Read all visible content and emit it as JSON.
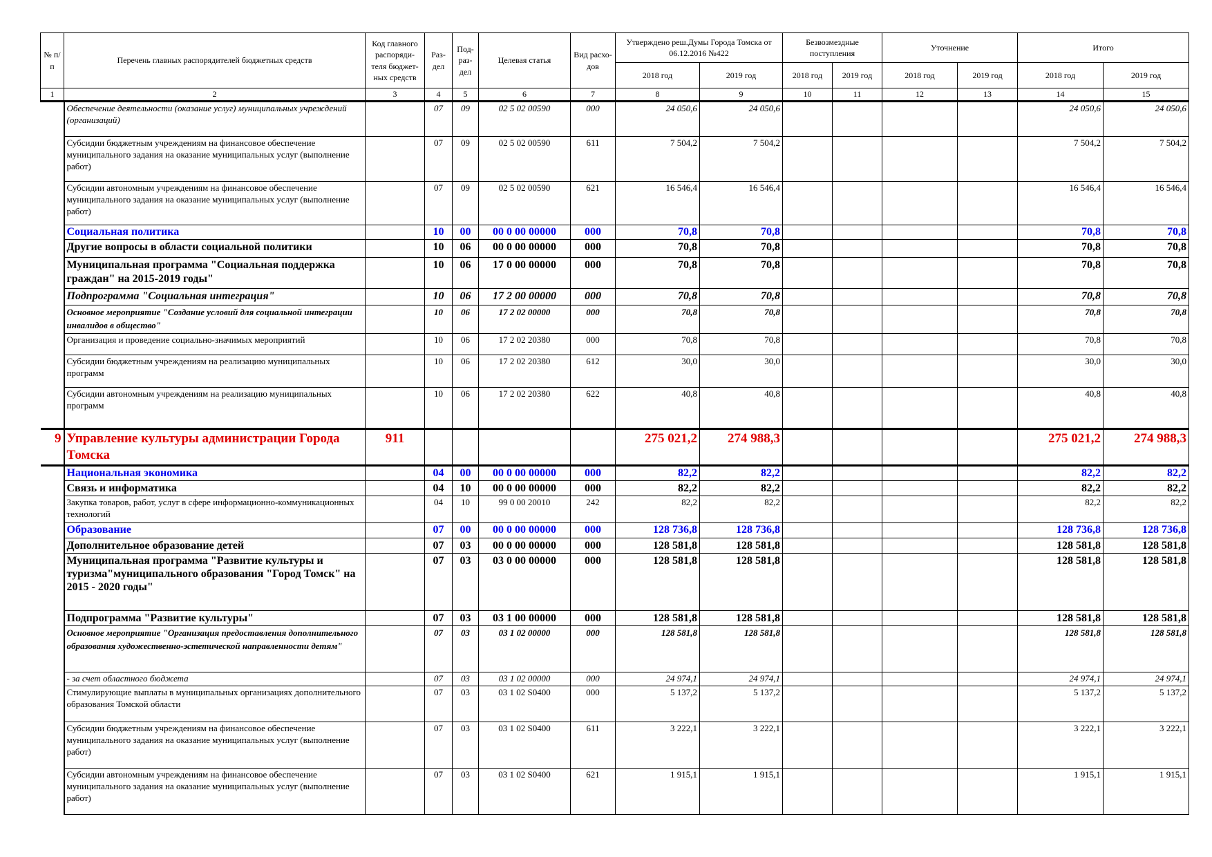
{
  "header": {
    "num": "№ п/п",
    "name": "Перечень главных распорядителей бюджетных средств",
    "code": "Код главного распоряди-теля бюджет-ных средств",
    "sec": "Раз-дел",
    "sub": "Под-раз-дел",
    "target": "Целевая статья",
    "kind": "Вид расхо-дов",
    "approved": "Утверждено реш.Думы Города Томска от 06.12.2016 №422",
    "grants": "Безвозмездные поступления",
    "adjust": "Уточнение",
    "total": "Итого",
    "years": [
      "2018 год",
      "2019 год",
      "2018 год",
      "2019 год",
      "2018 год",
      "2019 год",
      "2018 год",
      "2019 год"
    ],
    "col_numbers": [
      "1",
      "2",
      "3",
      "4",
      "5",
      "6",
      "7",
      "8",
      "9",
      "10",
      "11",
      "12",
      "13",
      "14",
      "15"
    ]
  },
  "table": {
    "rows": [
      {
        "style": "italic",
        "name": "Обеспечение деятельности (оказание услуг) муниципальных учреждений (организаций)",
        "sec": "07",
        "sub": "09",
        "target": "02 5 02 00590",
        "kind": "000",
        "a18": "24 050,6",
        "a19": "24 050,6",
        "t18": "24 050,6",
        "t19": "24 050,6"
      },
      {
        "style": "normal",
        "name": "Субсидии бюджетным учреждениям на финансовое обеспечение муниципального задания на оказание муниципальных услуг (выполнение работ)",
        "sec": "07",
        "sub": "09",
        "target": "02 5 02 00590",
        "kind": "611",
        "a18": "7 504,2",
        "a19": "7 504,2",
        "t18": "7 504,2",
        "t19": "7 504,2"
      },
      {
        "style": "normal",
        "name": "Субсидии автономным учреждениям на финансовое обеспечение муниципального задания на оказание муниципальных услуг (выполнение работ)",
        "sec": "07",
        "sub": "09",
        "target": "02 5 02 00590",
        "kind": "621",
        "a18": "16 546,4",
        "a19": "16 546,4",
        "t18": "16 546,4",
        "t19": "16 546,4"
      },
      {
        "style": "blue",
        "name": "Социальная политика",
        "sec": "10",
        "sub": "00",
        "target": "00 0 00 00000",
        "kind": "000",
        "a18": "70,8",
        "a19": "70,8",
        "t18": "70,8",
        "t19": "70,8"
      },
      {
        "style": "bold",
        "name": "Другие вопросы в области социальной политики",
        "sec": "10",
        "sub": "06",
        "target": "00 0 00 00000",
        "kind": "000",
        "a18": "70,8",
        "a19": "70,8",
        "t18": "70,8",
        "t19": "70,8"
      },
      {
        "style": "bold",
        "name": "Муниципальная программа \"Социальная поддержка граждан\" на 2015-2019 годы\"",
        "sec": "10",
        "sub": "06",
        "target": "17 0 00 00000",
        "kind": "000",
        "a18": "70,8",
        "a19": "70,8",
        "t18": "70,8",
        "t19": "70,8"
      },
      {
        "style": "bold-italic",
        "name": "Подпрограмма \"Социальная интеграция\"",
        "sec": "10",
        "sub": "06",
        "target": "17 2 00 00000",
        "kind": "000",
        "a18": "70,8",
        "a19": "70,8",
        "t18": "70,8",
        "t19": "70,8"
      },
      {
        "style": "bold-italic-small",
        "name": "Основное мероприятие \"Создание условий для социальной интеграции инвалидов в общество\"",
        "sec": "10",
        "sub": "06",
        "target": "17 2 02 00000",
        "kind": "000",
        "a18": "70,8",
        "a19": "70,8",
        "t18": "70,8",
        "t19": "70,8"
      },
      {
        "style": "normal",
        "name": "Организация и проведение социально-значимых мероприятий",
        "sec": "10",
        "sub": "06",
        "target": "17 2 02 20380",
        "kind": "000",
        "a18": "70,8",
        "a19": "70,8",
        "t18": "70,8",
        "t19": "70,8"
      },
      {
        "style": "normal",
        "name": "Субсидии бюджетным учреждениям на реализацию муниципальных программ",
        "sec": "10",
        "sub": "06",
        "target": "17 2 02 20380",
        "kind": "612",
        "a18": "30,0",
        "a19": "30,0",
        "t18": "30,0",
        "t19": "30,0"
      },
      {
        "style": "normal",
        "name": "Субсидии автономным учреждениям на реализацию муниципальных программ",
        "sec": "10",
        "sub": "06",
        "target": "17 2 02 20380",
        "kind": "622",
        "a18": "40,8",
        "a19": "40,8",
        "t18": "40,8",
        "t19": "40,8"
      },
      {
        "style": "red",
        "n": "9",
        "name": "Управление культуры администрации Города Томска",
        "code": "911",
        "a18": "275 021,2",
        "a19": "274 988,3",
        "t18": "275 021,2",
        "t19": "274 988,3"
      },
      {
        "style": "blue",
        "name": "Национальная экономика",
        "sec": "04",
        "sub": "00",
        "target": "00 0 00 00000",
        "kind": "000",
        "a18": "82,2",
        "a19": "82,2",
        "t18": "82,2",
        "t19": "82,2"
      },
      {
        "style": "bold",
        "name": "Связь и информатика",
        "sec": "04",
        "sub": "10",
        "target": "00 0 00 00000",
        "kind": "000",
        "a18": "82,2",
        "a19": "82,2",
        "t18": "82,2",
        "t19": "82,2"
      },
      {
        "style": "normal",
        "name": "Закупка товаров, работ, услуг в сфере информационно-коммуникационных технологий",
        "sec": "04",
        "sub": "10",
        "target": "99 0 00 20010",
        "kind": "242",
        "a18": "82,2",
        "a19": "82,2",
        "t18": "82,2",
        "t19": "82,2"
      },
      {
        "style": "blue",
        "name": "Образование",
        "sec": "07",
        "sub": "00",
        "target": "00 0 00 00000",
        "kind": "000",
        "a18": "128 736,8",
        "a19": "128 736,8",
        "t18": "128 736,8",
        "t19": "128 736,8"
      },
      {
        "style": "bold",
        "name": "Дополнительное образование детей",
        "sec": "07",
        "sub": "03",
        "target": "00 0 00 00000",
        "kind": "000",
        "a18": "128 581,8",
        "a19": "128 581,8",
        "t18": "128 581,8",
        "t19": "128 581,8"
      },
      {
        "style": "bold",
        "name": "Муниципальная программа \"Развитие культуры и туризма\"муниципального образования \"Город Томск\" на 2015 - 2020 годы\"",
        "sec": "07",
        "sub": "03",
        "target": "03 0 00 00000",
        "kind": "000",
        "a18": "128 581,8",
        "a19": "128 581,8",
        "t18": "128 581,8",
        "t19": "128 581,8"
      },
      {
        "style": "bold",
        "name": "Подпрограмма \"Развитие культуры\"",
        "sec": "07",
        "sub": "03",
        "target": "03 1 00 00000",
        "kind": "000",
        "a18": "128 581,8",
        "a19": "128 581,8",
        "t18": "128 581,8",
        "t19": "128 581,8"
      },
      {
        "style": "bold-italic-small",
        "name": "Основное мероприятие \"Организация предоставления дополнительного образования художественно-эстетической направленности детям\"",
        "sec": "07",
        "sub": "03",
        "target": "03 1 02 00000",
        "kind": "000",
        "a18": "128 581,8",
        "a19": "128 581,8",
        "t18": "128 581,8",
        "t19": "128 581,8"
      },
      {
        "style": "italic",
        "name": "- за счет областного бюджета",
        "sec": "07",
        "sub": "03",
        "target": "03 1 02 00000",
        "kind": "000",
        "a18": "24 974,1",
        "a19": "24 974,1",
        "t18": "24 974,1",
        "t19": "24 974,1"
      },
      {
        "style": "normal",
        "name": "Стимулирующие выплаты в муниципальных организациях дополнительного образования Томской области",
        "sec": "07",
        "sub": "03",
        "target": "03 1 02 S0400",
        "kind": "000",
        "a18": "5 137,2",
        "a19": "5 137,2",
        "t18": "5 137,2",
        "t19": "5 137,2"
      },
      {
        "style": "normal",
        "name": "Субсидии бюджетным учреждениям на финансовое обеспечение муниципального задания на оказание муниципальных услуг (выполнение работ)",
        "sec": "07",
        "sub": "03",
        "target": "03 1 02 S0400",
        "kind": "611",
        "a18": "3 222,1",
        "a19": "3 222,1",
        "t18": "3 222,1",
        "t19": "3 222,1"
      },
      {
        "style": "normal",
        "name": "Субсидии автономным учреждениям на финансовое обеспечение муниципального задания на оказание муниципальных услуг (выполнение работ)",
        "sec": "07",
        "sub": "03",
        "target": "03 1 02 S0400",
        "kind": "621",
        "a18": "1 915,1",
        "a19": "1 915,1",
        "t18": "1 915,1",
        "t19": "1 915,1"
      }
    ]
  }
}
